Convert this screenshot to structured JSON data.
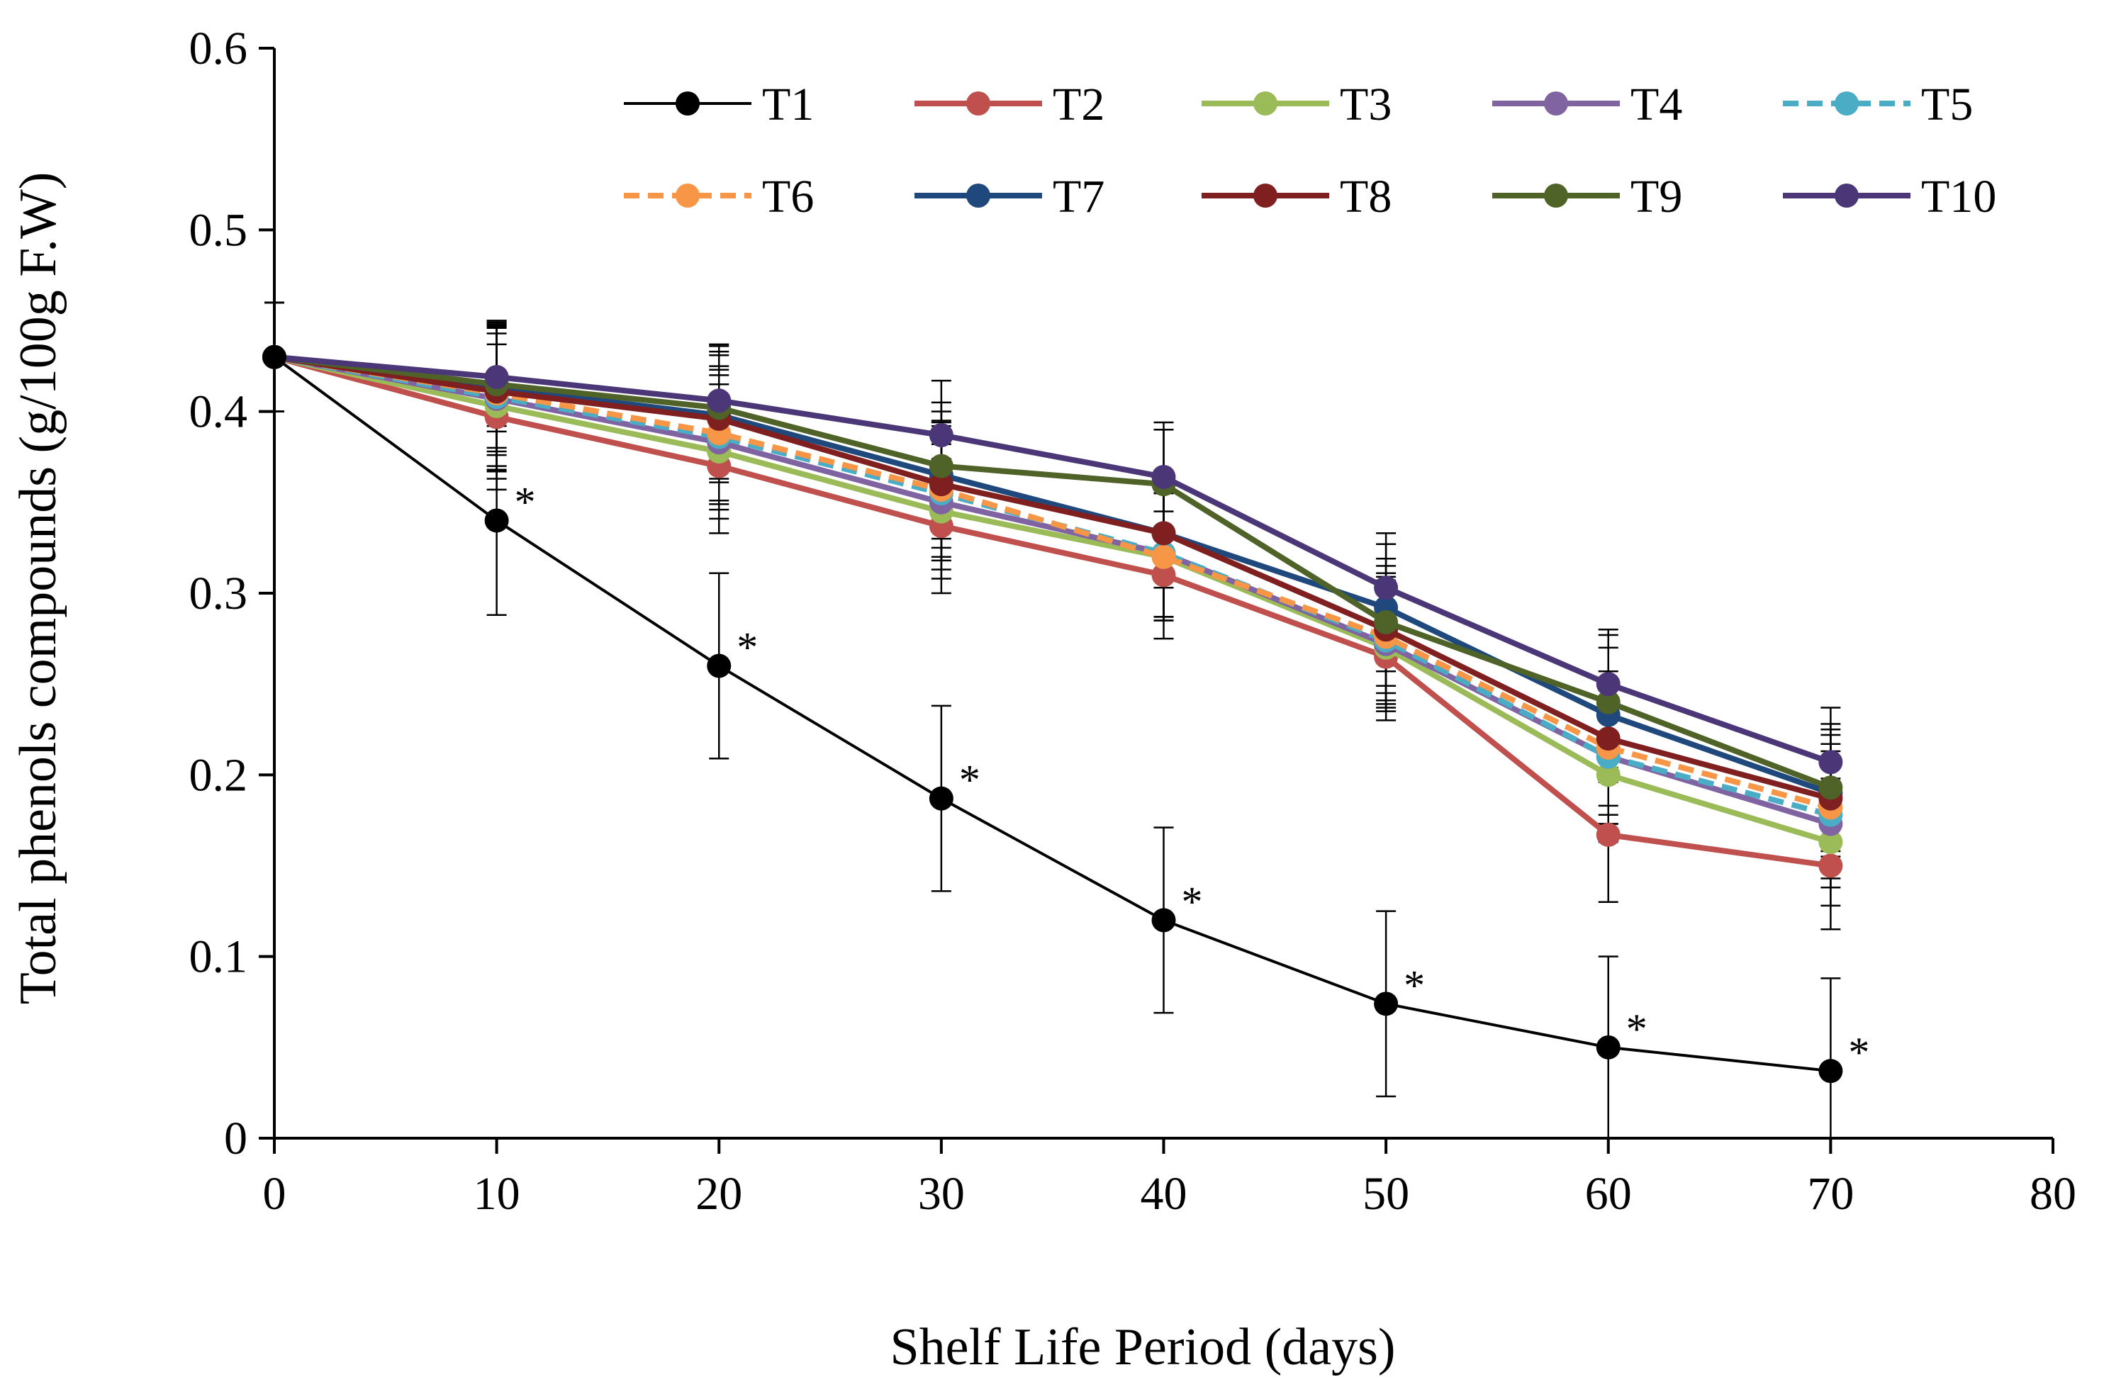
{
  "chart_data": {
    "type": "line",
    "title": "",
    "xlabel": "Shelf Life Period (days)",
    "ylabel": "Total phenols compounds (g/100g F.W)",
    "xlim": [
      0,
      80
    ],
    "ylim": [
      0,
      0.6
    ],
    "xticks": [
      0,
      10,
      20,
      30,
      40,
      50,
      60,
      70,
      80
    ],
    "yticks": [
      0,
      0.1,
      0.2,
      0.3,
      0.4,
      0.5,
      0.6
    ],
    "xtick_labels": [
      "0",
      "10",
      "20",
      "30",
      "40",
      "50",
      "60",
      "70",
      "80"
    ],
    "ytick_labels": [
      "0",
      "0.1",
      "0.2",
      "0.3",
      "0.4",
      "0.5",
      "0.6"
    ],
    "grid": false,
    "legend_position": "top",
    "x": [
      0,
      10,
      20,
      30,
      40,
      50,
      60,
      70
    ],
    "series": [
      {
        "name": "T1",
        "color": "#000000",
        "dashed": false,
        "values": [
          0.43,
          0.34,
          0.26,
          0.187,
          0.12,
          0.074,
          0.05,
          0.037
        ],
        "errors": [
          0.03,
          0.052,
          0.051,
          0.051,
          0.051,
          0.051,
          0.05,
          0.051
        ]
      },
      {
        "name": "T2",
        "color": "#c0504d",
        "dashed": false,
        "values": [
          0.43,
          0.397,
          0.37,
          0.337,
          0.31,
          0.265,
          0.167,
          0.15
        ],
        "errors": [
          0.03,
          0.04,
          0.037,
          0.037,
          0.035,
          0.035,
          0.037,
          0.035
        ]
      },
      {
        "name": "T3",
        "color": "#9bbb59",
        "dashed": false,
        "values": [
          0.43,
          0.403,
          0.378,
          0.345,
          0.32,
          0.27,
          0.2,
          0.163
        ],
        "errors": [
          0.03,
          0.04,
          0.037,
          0.037,
          0.035,
          0.035,
          0.037,
          0.035
        ]
      },
      {
        "name": "T4",
        "color": "#8064a2",
        "dashed": false,
        "values": [
          0.43,
          0.407,
          0.383,
          0.35,
          0.322,
          0.272,
          0.21,
          0.173
        ],
        "errors": [
          0.03,
          0.04,
          0.037,
          0.037,
          0.035,
          0.035,
          0.037,
          0.035
        ]
      },
      {
        "name": "T5",
        "color": "#4bacc6",
        "dashed": true,
        "values": [
          0.43,
          0.408,
          0.386,
          0.355,
          0.322,
          0.274,
          0.21,
          0.178
        ],
        "errors": [
          0.03,
          0.04,
          0.037,
          0.037,
          0.035,
          0.035,
          0.037,
          0.035
        ]
      },
      {
        "name": "T6",
        "color": "#f79646",
        "dashed": true,
        "values": [
          0.43,
          0.41,
          0.388,
          0.357,
          0.32,
          0.276,
          0.215,
          0.182
        ],
        "errors": [
          0.03,
          0.04,
          0.037,
          0.037,
          0.035,
          0.035,
          0.037,
          0.035
        ]
      },
      {
        "name": "T7",
        "color": "#1f497d",
        "dashed": false,
        "values": [
          0.43,
          0.413,
          0.398,
          0.365,
          0.333,
          0.292,
          0.233,
          0.19
        ],
        "errors": [
          0.03,
          0.035,
          0.035,
          0.035,
          0.03,
          0.035,
          0.037,
          0.035
        ]
      },
      {
        "name": "T8",
        "color": "#7f1f1f",
        "dashed": false,
        "values": [
          0.43,
          0.411,
          0.396,
          0.36,
          0.333,
          0.28,
          0.22,
          0.187
        ],
        "errors": [
          0.03,
          0.035,
          0.035,
          0.035,
          0.03,
          0.035,
          0.037,
          0.035
        ]
      },
      {
        "name": "T9",
        "color": "#4f6228",
        "dashed": false,
        "values": [
          0.43,
          0.415,
          0.402,
          0.37,
          0.36,
          0.284,
          0.24,
          0.193
        ],
        "errors": [
          0.03,
          0.035,
          0.035,
          0.035,
          0.03,
          0.035,
          0.037,
          0.035
        ]
      },
      {
        "name": "T10",
        "color": "#4b3677",
        "dashed": false,
        "values": [
          0.43,
          0.419,
          0.406,
          0.387,
          0.364,
          0.303,
          0.25,
          0.207
        ],
        "errors": [
          0.03,
          0.03,
          0.03,
          0.03,
          0.03,
          0.03,
          0.03,
          0.03
        ]
      }
    ],
    "annotations": [
      {
        "text": "*",
        "x": 10,
        "y": 0.34
      },
      {
        "text": "*",
        "x": 20,
        "y": 0.26
      },
      {
        "text": "*",
        "x": 30,
        "y": 0.187
      },
      {
        "text": "*",
        "x": 40,
        "y": 0.12
      },
      {
        "text": "*",
        "x": 50,
        "y": 0.074
      },
      {
        "text": "*",
        "x": 60,
        "y": 0.05
      },
      {
        "text": "*",
        "x": 70,
        "y": 0.037
      }
    ]
  }
}
